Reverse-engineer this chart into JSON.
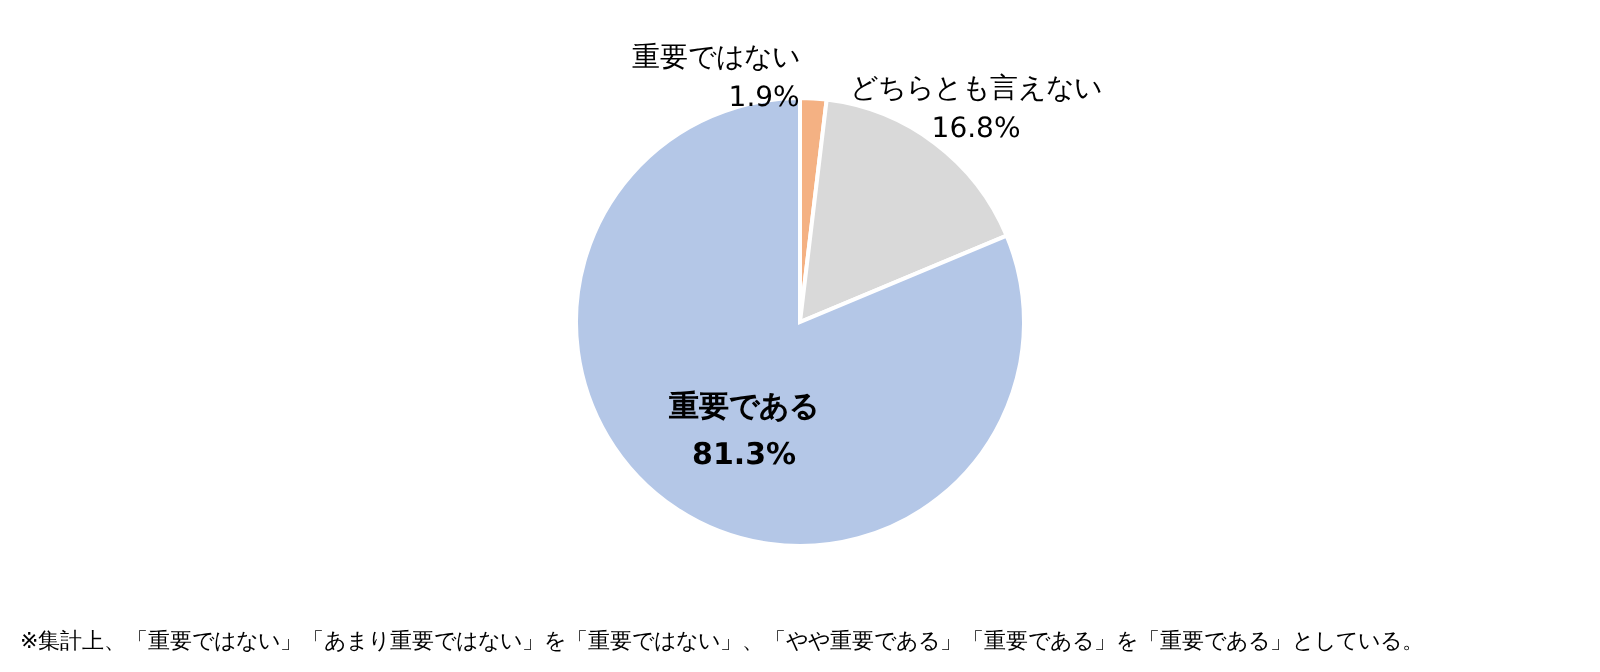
{
  "chart_data": {
    "type": "pie",
    "categories": [
      "重要ではない",
      "どちらとも言えない",
      "重要である"
    ],
    "values": [
      1.9,
      16.8,
      81.3
    ],
    "colors": [
      "#f4b183",
      "#d9d9d9",
      "#b4c7e7"
    ],
    "value_labels": [
      "1.9%",
      "16.8%",
      "81.3%"
    ],
    "legend": false,
    "annotations": [
      "※集計上、「重要ではない」「あまり重要ではない」を「重要ではない」、「やや重要である」「重要である」を「重要である」としている。"
    ]
  }
}
